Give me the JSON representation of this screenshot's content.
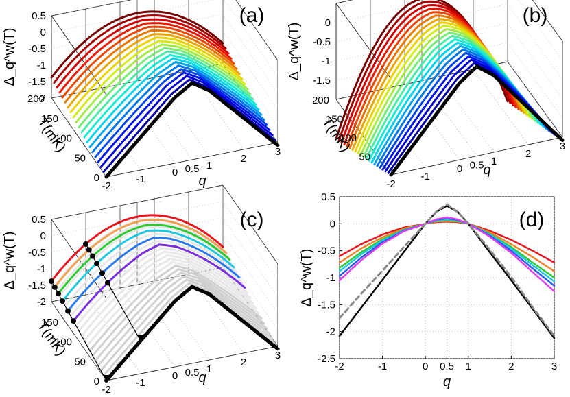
{
  "chart_data": [
    {
      "panel": "(a)",
      "type": "line",
      "projection": "3d",
      "xlabel": "q",
      "ylabel": "T(mK)",
      "zlabel": "Δ_q^w(T)",
      "x_ticks": [
        "-2",
        "-1",
        "0",
        "0.5",
        "1",
        "2",
        "3"
      ],
      "y_ticks": [
        "0",
        "50",
        "100",
        "150",
        "200"
      ],
      "z_ticks": [
        "0.5",
        "0",
        "-0.5",
        "-1",
        "-1.5",
        "-2"
      ],
      "xlim": [
        -2,
        3
      ],
      "ylim": [
        0,
        200
      ],
      "zlim": [
        -2,
        0.5
      ],
      "colormap": "jet (violet at low T → red at high T)",
      "T_values": [
        0,
        10,
        20,
        30,
        40,
        50,
        60,
        70,
        80,
        90,
        100,
        110,
        120,
        130,
        140,
        150,
        160,
        170,
        180,
        190,
        200
      ],
      "q_values": [
        -2,
        -1,
        0,
        0.5,
        1,
        2,
        3
      ],
      "series": [
        {
          "T": 0,
          "values": [
            -2.0,
            -1.0,
            0.0,
            0.3,
            0.0,
            -1.0,
            -2.0
          ],
          "color": "#000000"
        },
        {
          "T": 200,
          "values": [
            -0.55,
            -0.2,
            0.05,
            0.1,
            0.05,
            -0.3,
            -0.75
          ],
          "color": "#e8141e"
        }
      ]
    },
    {
      "panel": "(b)",
      "type": "line",
      "projection": "3d",
      "xlabel": "q",
      "ylabel": "T(mK)",
      "zlabel": "Δ_q^w(T)",
      "x_ticks": [
        "-2",
        "-1",
        "0",
        "0.5",
        "1",
        "2",
        "3"
      ],
      "y_ticks": [
        "50",
        "100",
        "150",
        "200"
      ],
      "z_ticks": [
        "0",
        "-0.5",
        "-1",
        "-1.5"
      ],
      "xlim": [
        -2,
        3
      ],
      "ylim": [
        0,
        200
      ],
      "zlim": [
        -2,
        0.5
      ],
      "colormap": "jet (violet at low T → red at high T)",
      "q_values": [
        -2,
        -1,
        0,
        0.5,
        1,
        2,
        3
      ],
      "series": [
        {
          "T": 0,
          "values": [
            -2.0,
            -1.0,
            0.0,
            0.3,
            0.0,
            -1.0,
            -2.0
          ],
          "color": "#000000"
        },
        {
          "T": 200,
          "values": [
            -1.5,
            -0.7,
            0.05,
            0.35,
            0.1,
            -0.6,
            -1.3
          ],
          "color": "#e8141e"
        }
      ]
    },
    {
      "panel": "(c)",
      "type": "line",
      "projection": "3d",
      "xlabel": "q",
      "ylabel": "T(mK)",
      "zlabel": "Δ_q^w(T)",
      "x_ticks": [
        "-2",
        "-1",
        "0",
        "0.5",
        "1",
        "2",
        "3"
      ],
      "y_ticks": [
        "0",
        "50",
        "100",
        "150"
      ],
      "z_ticks": [
        "0.5",
        "0",
        "-0.5",
        "-1",
        "-1.5",
        "-2"
      ],
      "xlim": [
        -2,
        3
      ],
      "ylim": [
        0,
        200
      ],
      "zlim": [
        -2,
        0.5
      ],
      "q_values": [
        -2,
        -1,
        0,
        0.5,
        1,
        2,
        3
      ],
      "series": [
        {
          "T": 0,
          "values": [
            -2.0,
            -1.0,
            0.0,
            0.3,
            0.0,
            -1.0,
            -2.0
          ],
          "color": "#000000"
        },
        {
          "T": 60,
          "values": [
            -1.6,
            -0.75,
            0.0,
            0.15,
            0.0,
            -0.7,
            -1.5
          ],
          "color": "#7a2ee0"
        },
        {
          "T": 90,
          "values": [
            -1.2,
            -0.55,
            0.0,
            0.1,
            0.0,
            -0.55,
            -1.2
          ],
          "color": "#2a7af0"
        },
        {
          "T": 120,
          "values": [
            -1.0,
            -0.45,
            0.0,
            0.08,
            0.0,
            -0.45,
            -1.05
          ],
          "color": "#1ec8e0"
        },
        {
          "T": 150,
          "values": [
            -0.8,
            -0.35,
            0.02,
            0.06,
            0.02,
            -0.35,
            -0.9
          ],
          "color": "#2ec832"
        },
        {
          "T": 180,
          "values": [
            -0.7,
            -0.3,
            0.03,
            0.06,
            0.03,
            -0.3,
            -0.8
          ],
          "color": "#f0a050"
        },
        {
          "T": 200,
          "values": [
            -0.55,
            -0.2,
            0.05,
            0.08,
            0.05,
            -0.25,
            -0.7
          ],
          "color": "#e8141e"
        }
      ]
    },
    {
      "panel": "(d)",
      "type": "line",
      "xlabel": "q",
      "ylabel": "Δ_q^w(T)",
      "xlim": [
        -2,
        3
      ],
      "ylim": [
        -2.5,
        0.5
      ],
      "x_ticks": [
        "-2",
        "-1",
        "0",
        "0.5",
        "1",
        "2",
        "3"
      ],
      "y_ticks": [
        "0.5",
        "0",
        "-0.5",
        "-1",
        "-1.5",
        "-2",
        "-2.5"
      ],
      "grid": true,
      "x": [
        -2,
        -1.5,
        -1,
        -0.5,
        0,
        0.25,
        0.5,
        0.75,
        1,
        1.5,
        2,
        2.5,
        3
      ],
      "series": [
        {
          "color": "#e8141e",
          "values": [
            -0.6,
            -0.38,
            -0.2,
            -0.07,
            0.0,
            0.03,
            0.04,
            0.03,
            0.0,
            -0.13,
            -0.3,
            -0.5,
            -0.72
          ]
        },
        {
          "color": "#f08228",
          "values": [
            -0.72,
            -0.46,
            -0.25,
            -0.09,
            0.0,
            0.04,
            0.05,
            0.04,
            0.0,
            -0.16,
            -0.38,
            -0.62,
            -0.88
          ]
        },
        {
          "color": "#2ec832",
          "values": [
            -0.82,
            -0.53,
            -0.29,
            -0.11,
            0.0,
            0.05,
            0.07,
            0.05,
            0.0,
            -0.19,
            -0.43,
            -0.72,
            -1.0
          ]
        },
        {
          "color": "#1ec8e0",
          "values": [
            -0.88,
            -0.57,
            -0.31,
            -0.12,
            0.0,
            0.06,
            0.08,
            0.06,
            0.0,
            -0.2,
            -0.46,
            -0.77,
            -1.07
          ]
        },
        {
          "color": "#2a5af0",
          "values": [
            -0.97,
            -0.63,
            -0.34,
            -0.13,
            0.0,
            0.07,
            0.1,
            0.07,
            0.0,
            -0.22,
            -0.5,
            -0.83,
            -1.15
          ]
        },
        {
          "color": "#e040f0",
          "values": [
            -1.05,
            -0.68,
            -0.37,
            -0.14,
            0.0,
            0.08,
            0.12,
            0.08,
            0.0,
            -0.24,
            -0.54,
            -0.9,
            -1.25
          ]
        },
        {
          "color": "#000000",
          "values": [
            -2.08,
            -1.56,
            -1.04,
            -0.52,
            0.0,
            0.22,
            0.33,
            0.22,
            0.0,
            -0.53,
            -1.05,
            -1.58,
            -2.12
          ]
        },
        {
          "color": "#888888",
          "dashed": true,
          "values": [
            -1.75,
            -1.3,
            -0.87,
            -0.43,
            0.0,
            0.22,
            0.36,
            0.22,
            0.0,
            -0.48,
            -0.99,
            -1.55,
            -2.08
          ]
        }
      ]
    }
  ]
}
